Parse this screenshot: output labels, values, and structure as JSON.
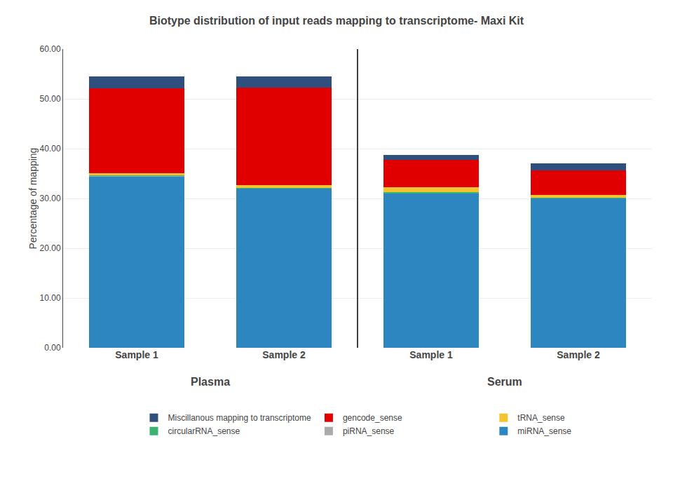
{
  "chart_data": {
    "type": "bar",
    "title": "Biotype distribution of input reads mapping to transcriptome- Maxi Kit",
    "ylabel": "Percentage of mapping",
    "categories": [
      "Sample 1",
      "Sample 2",
      "Sample 1",
      "Sample 2"
    ],
    "annotations": [
      "Plasma",
      "Serum"
    ],
    "series": [
      {
        "name": "miRNA_sense",
        "color": "#2E86C1",
        "values": [
          34.5,
          32.0,
          31.0,
          30.0
        ]
      },
      {
        "name": "piRNA_sense",
        "color": "#AAAAAA",
        "values": [
          0.05,
          0.05,
          0.1,
          0.1
        ]
      },
      {
        "name": "circularRNA_sense",
        "color": "#3CB371",
        "values": [
          0.05,
          0.05,
          0.1,
          0.1
        ]
      },
      {
        "name": "tRNA_sense",
        "color": "#F4C430",
        "values": [
          0.5,
          0.6,
          1.0,
          0.5
        ]
      },
      {
        "name": "gencode_sense",
        "color": "#E00000",
        "values": [
          17.0,
          19.5,
          5.5,
          5.0
        ]
      },
      {
        "name": "Miscillanous mapping to transcriptome",
        "color": "#2F4F7F",
        "values": [
          2.4,
          2.3,
          1.0,
          1.3
        ]
      }
    ],
    "stacked": true,
    "ylim": [
      0,
      60
    ],
    "yticks": [
      {
        "value": 0,
        "label": "0.00"
      },
      {
        "value": 10,
        "label": "10.00"
      },
      {
        "value": 20,
        "label": "20.00"
      },
      {
        "value": 30,
        "label": "30.00"
      },
      {
        "value": 40,
        "label": "40.00"
      },
      {
        "value": 50,
        "label": "50.00"
      },
      {
        "value": 60,
        "label": "60.00"
      }
    ],
    "grid": true,
    "legend": "bottom"
  }
}
